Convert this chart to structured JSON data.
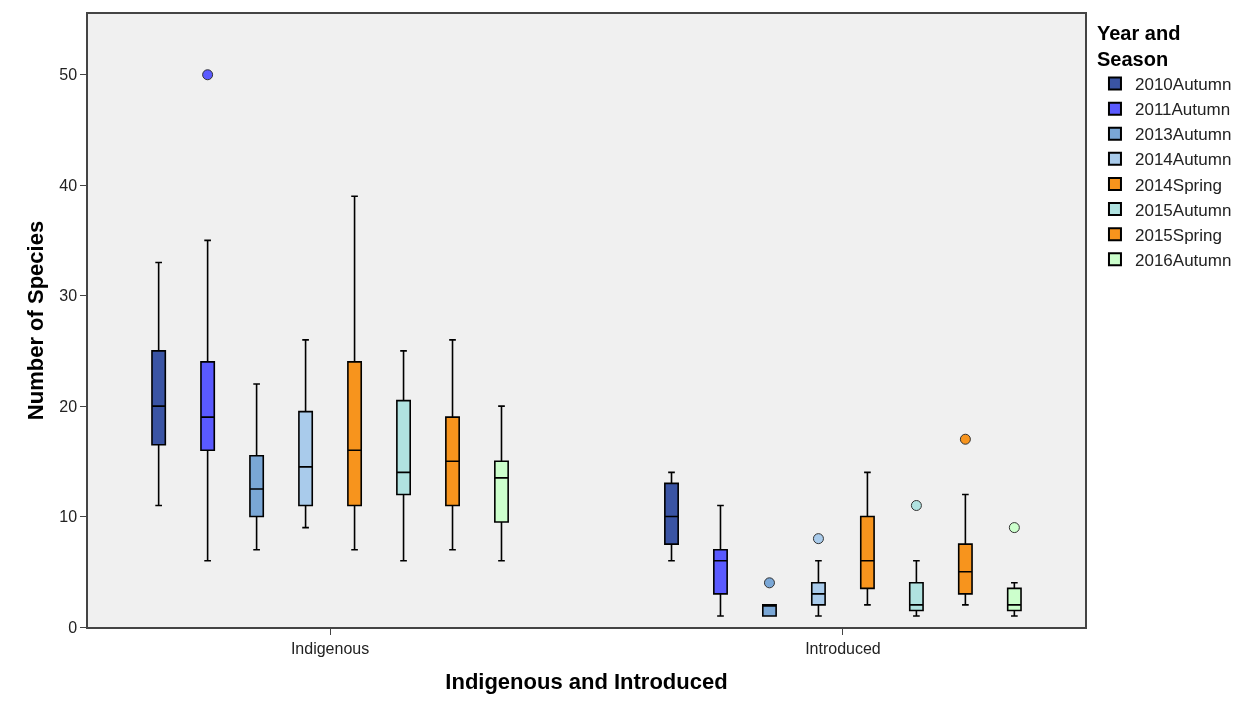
{
  "chart_data": {
    "type": "box",
    "xlabel": "Indigenous and Introduced",
    "ylabel": "Number of Species",
    "legend_title": "Year and Season",
    "categories": [
      "Indigenous",
      "Introduced"
    ],
    "ylim": [
      0,
      55.5
    ],
    "yticks": [
      0,
      10,
      20,
      30,
      40,
      50
    ],
    "grid": false,
    "legend": "top right",
    "marker": "circle",
    "series": [
      {
        "name": "2010Autumn",
        "color": "#3a54a4",
        "boxes": [
          {
            "low": 11,
            "q1": 16.5,
            "median": 20,
            "q3": 25,
            "high": 33
          },
          {
            "low": 6,
            "q1": 7.5,
            "median": 10,
            "q3": 13,
            "high": 14
          }
        ]
      },
      {
        "name": "2011Autumn",
        "color": "#5a5aff",
        "boxes": [
          {
            "low": 6,
            "q1": 16,
            "median": 19,
            "q3": 24,
            "high": 35,
            "outliers": [
              50
            ]
          },
          {
            "low": 1,
            "q1": 3,
            "median": 6,
            "q3": 7,
            "high": 11
          }
        ]
      },
      {
        "name": "2013Autumn",
        "color": "#7aa7d6",
        "boxes": [
          {
            "low": 7,
            "q1": 10,
            "median": 12.5,
            "q3": 15.5,
            "high": 22
          },
          {
            "low": 1,
            "q1": 1,
            "median": 2,
            "q3": 2,
            "high": 2,
            "outliers": [
              4
            ]
          }
        ]
      },
      {
        "name": "2014Autumn",
        "color": "#a9cbeb",
        "boxes": [
          {
            "low": 9,
            "q1": 11,
            "median": 14.5,
            "q3": 19.5,
            "high": 26
          },
          {
            "low": 1,
            "q1": 2,
            "median": 3,
            "q3": 4,
            "high": 6,
            "outliers": [
              8
            ]
          }
        ]
      },
      {
        "name": "2014Spring",
        "color": "#f7941d",
        "boxes": [
          {
            "low": 7,
            "q1": 11,
            "median": 16,
            "q3": 24,
            "high": 39
          },
          {
            "low": 2,
            "q1": 3.5,
            "median": 6,
            "q3": 10,
            "high": 14
          }
        ]
      },
      {
        "name": "2015Autumn",
        "color": "#b0e2e0",
        "boxes": [
          {
            "low": 6,
            "q1": 12,
            "median": 14,
            "q3": 20.5,
            "high": 25
          },
          {
            "low": 1,
            "q1": 1.5,
            "median": 2,
            "q3": 4,
            "high": 6,
            "outliers": [
              11
            ]
          }
        ]
      },
      {
        "name": "2015Spring",
        "color": "#f7941d",
        "boxes": [
          {
            "low": 7,
            "q1": 11,
            "median": 15,
            "q3": 19,
            "high": 26
          },
          {
            "low": 2,
            "q1": 3,
            "median": 5,
            "q3": 7.5,
            "high": 12,
            "outliers": [
              17
            ]
          }
        ]
      },
      {
        "name": "2016Autumn",
        "color": "#ccffcc",
        "boxes": [
          {
            "low": 6,
            "q1": 9.5,
            "median": 13.5,
            "q3": 15,
            "high": 20
          },
          {
            "low": 1,
            "q1": 1.5,
            "median": 2,
            "q3": 3.5,
            "high": 4,
            "outliers": [
              9
            ]
          }
        ]
      }
    ]
  }
}
